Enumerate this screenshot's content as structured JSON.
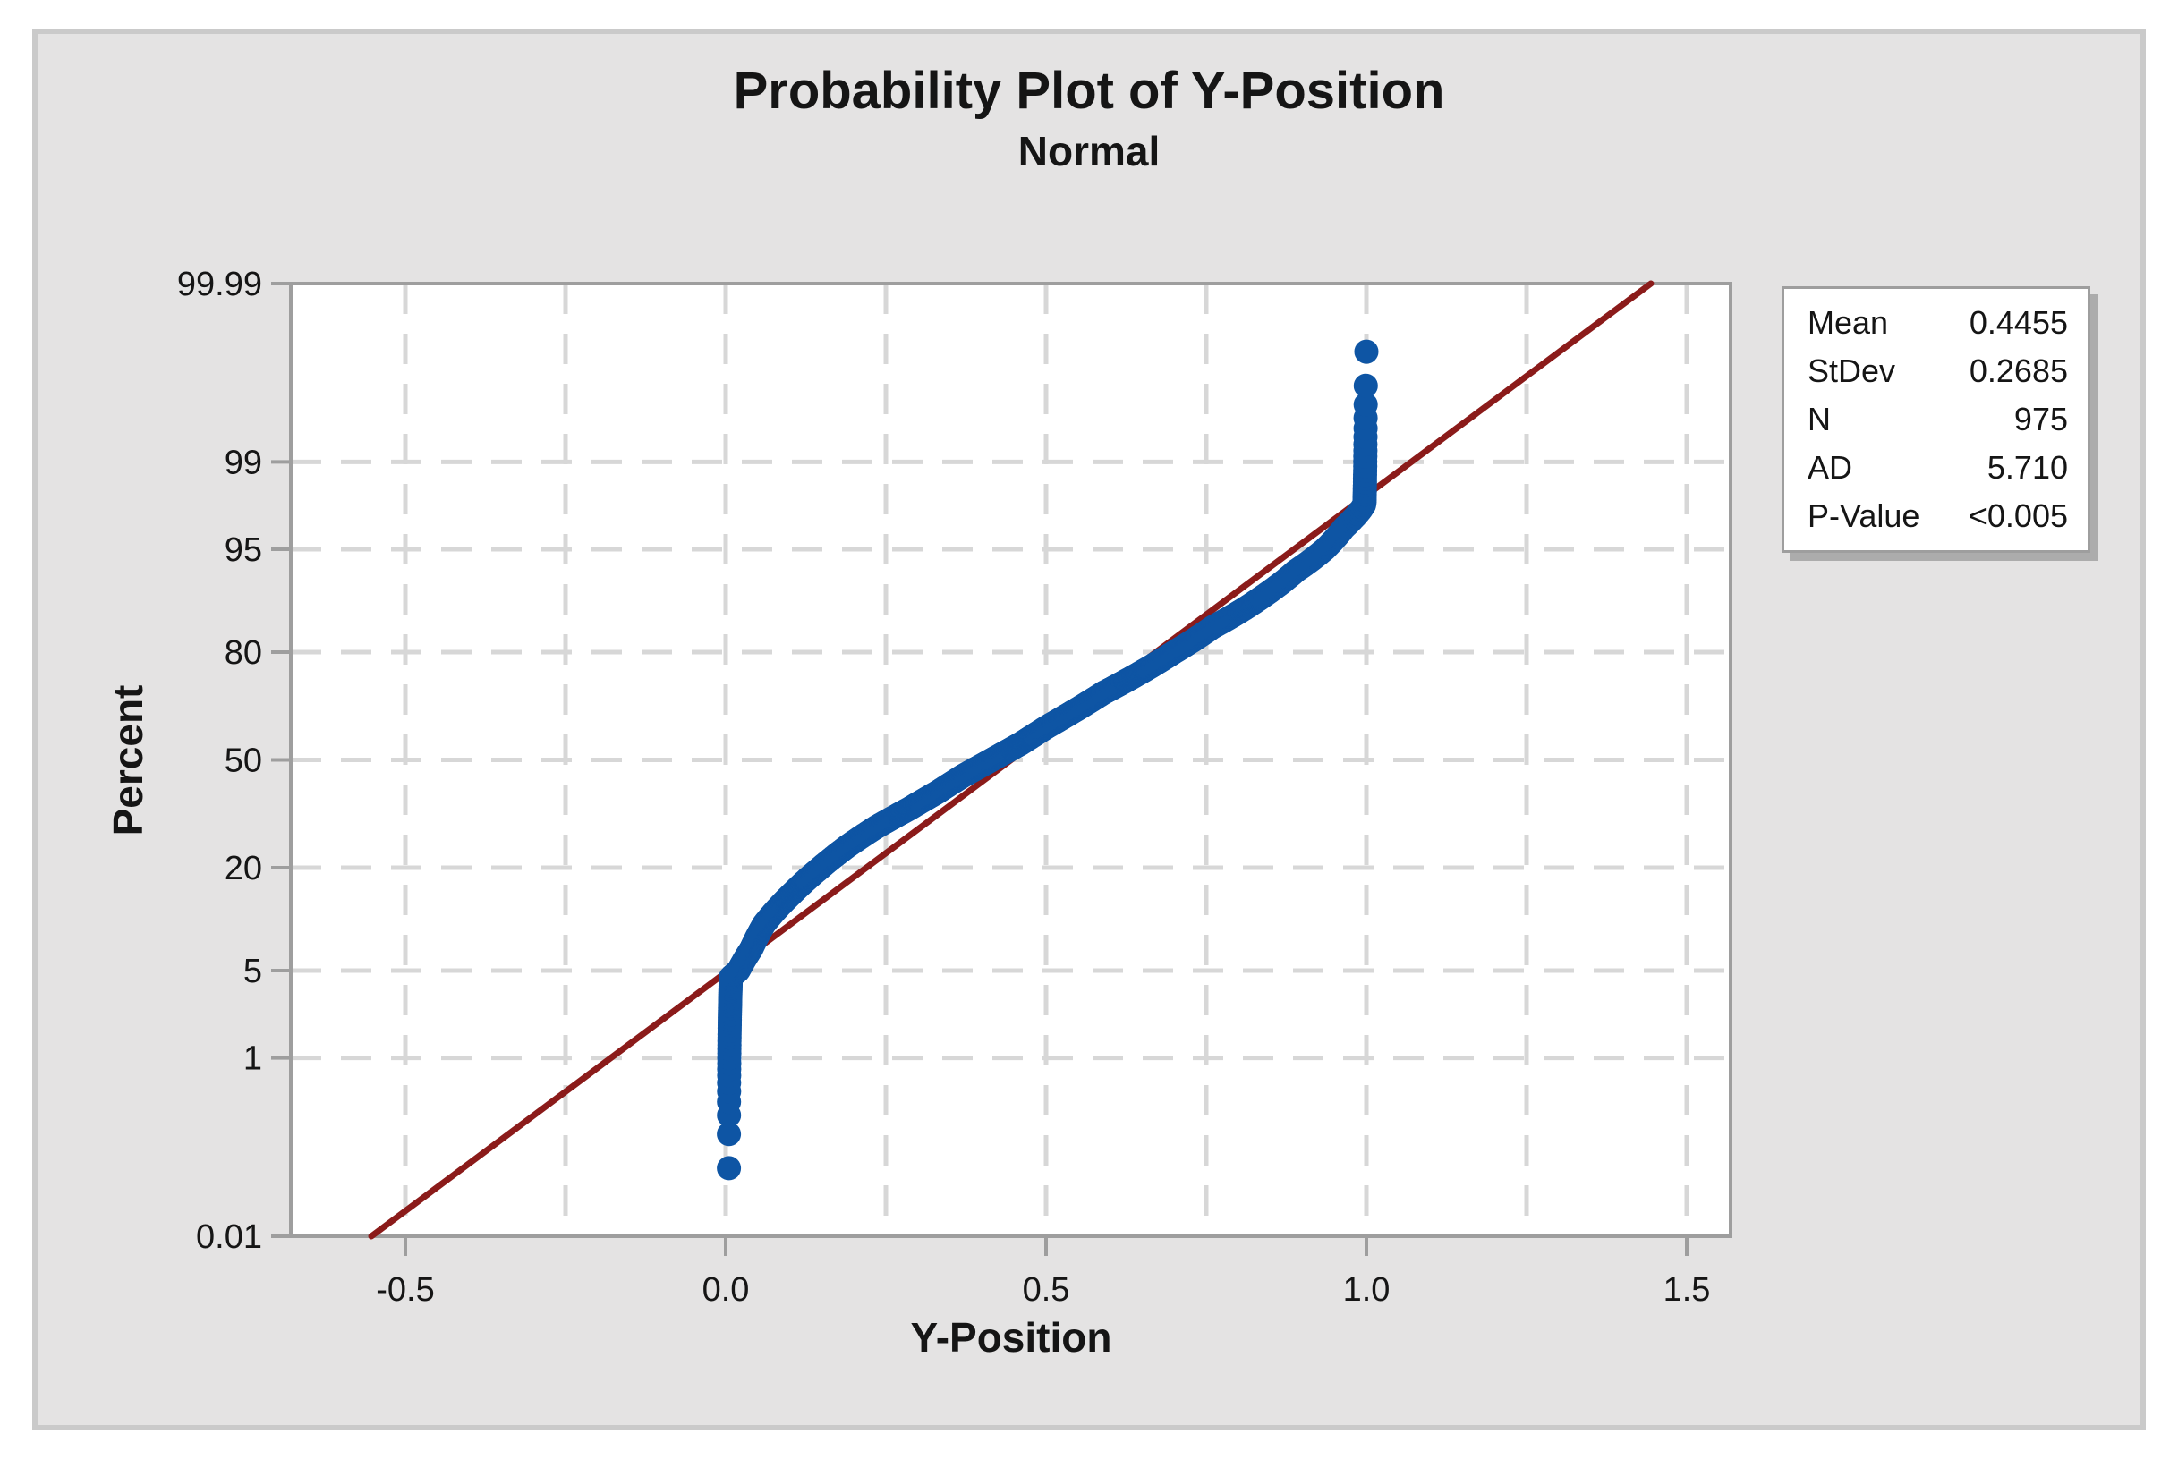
{
  "chart_data": {
    "type": "scatter",
    "subtype": "normal-probability-plot",
    "title": "Probability Plot of Y-Position",
    "subtitle": "Normal",
    "xlabel": "Y-Position",
    "ylabel": "Percent",
    "grid": true,
    "x_ticks": [
      {
        "v": -0.5,
        "label": "-0.5"
      },
      {
        "v": 0.0,
        "label": "0.0"
      },
      {
        "v": 0.5,
        "label": "0.5"
      },
      {
        "v": 1.0,
        "label": "1.0"
      },
      {
        "v": 1.5,
        "label": "1.5"
      }
    ],
    "y_ticks_percent": [
      {
        "p": 99.99,
        "label": "99.99"
      },
      {
        "p": 99,
        "label": "99"
      },
      {
        "p": 95,
        "label": "95"
      },
      {
        "p": 80,
        "label": "80"
      },
      {
        "p": 50,
        "label": "50"
      },
      {
        "p": 20,
        "label": "20"
      },
      {
        "p": 5,
        "label": "5"
      },
      {
        "p": 1,
        "label": "1"
      },
      {
        "p": 0.01,
        "label": "0.01"
      }
    ],
    "x_gridlines": [
      -0.5,
      -0.25,
      0.0,
      0.25,
      0.5,
      0.75,
      1.0,
      1.25,
      1.5
    ],
    "y_gridlines_percent": [
      99,
      95,
      80,
      50,
      20,
      5,
      1
    ],
    "x_axis_range_shown": [
      -0.68,
      1.57
    ],
    "y_axis_range_percent": [
      0.01,
      99.99
    ],
    "n_points": 975,
    "fit_line": {
      "distribution": "Normal",
      "mean": 0.4455,
      "stdev": 0.2685
    },
    "empirical_quantiles_percent_value": [
      [
        0.07,
        0.005
      ],
      [
        4.5,
        0.008
      ],
      [
        5,
        0.02
      ],
      [
        7,
        0.04
      ],
      [
        10,
        0.06
      ],
      [
        15,
        0.105
      ],
      [
        20,
        0.148
      ],
      [
        25,
        0.19
      ],
      [
        30,
        0.235
      ],
      [
        35,
        0.285
      ],
      [
        40,
        0.33
      ],
      [
        45,
        0.37
      ],
      [
        50,
        0.415
      ],
      [
        55,
        0.46
      ],
      [
        60,
        0.5
      ],
      [
        65,
        0.545
      ],
      [
        70,
        0.59
      ],
      [
        75,
        0.645
      ],
      [
        80,
        0.7
      ],
      [
        85,
        0.76
      ],
      [
        90,
        0.84
      ],
      [
        93,
        0.89
      ],
      [
        95,
        0.935
      ],
      [
        96.5,
        0.965
      ],
      [
        97.4,
        0.99
      ],
      [
        97.7,
        0.997
      ],
      [
        99.85,
        0.999
      ],
      [
        99.93,
        1.0
      ]
    ],
    "colors": {
      "point": "#0E55A4",
      "fit_line": "#8B1B1A",
      "gridline": "#D7D7D7",
      "frame": "#9E9E9E",
      "plot_background": "#FFFFFF",
      "canvas_background": "#E4E3E3",
      "canvas_border": "#CACACA",
      "legend_shadow": "#ACACAC",
      "text": "#151515"
    }
  },
  "legend": {
    "rows": [
      {
        "label": "Mean",
        "value": "0.4455"
      },
      {
        "label": "StDev",
        "value": "0.2685"
      },
      {
        "label": "N",
        "value": "975"
      },
      {
        "label": "AD",
        "value": "5.710"
      },
      {
        "label": "P-Value",
        "value": "<0.005"
      }
    ]
  }
}
